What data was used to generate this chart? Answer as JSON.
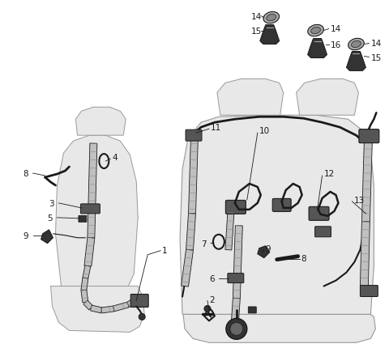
{
  "bg_color": "#ffffff",
  "line_color": "#1a1a1a",
  "seat_fill": "#e8e8e8",
  "seat_edge": "#999999",
  "belt_fill": "#888888",
  "part_fill": "#444444",
  "figsize": [
    4.8,
    4.31
  ],
  "dpi": 100,
  "label_fs": 7.5
}
